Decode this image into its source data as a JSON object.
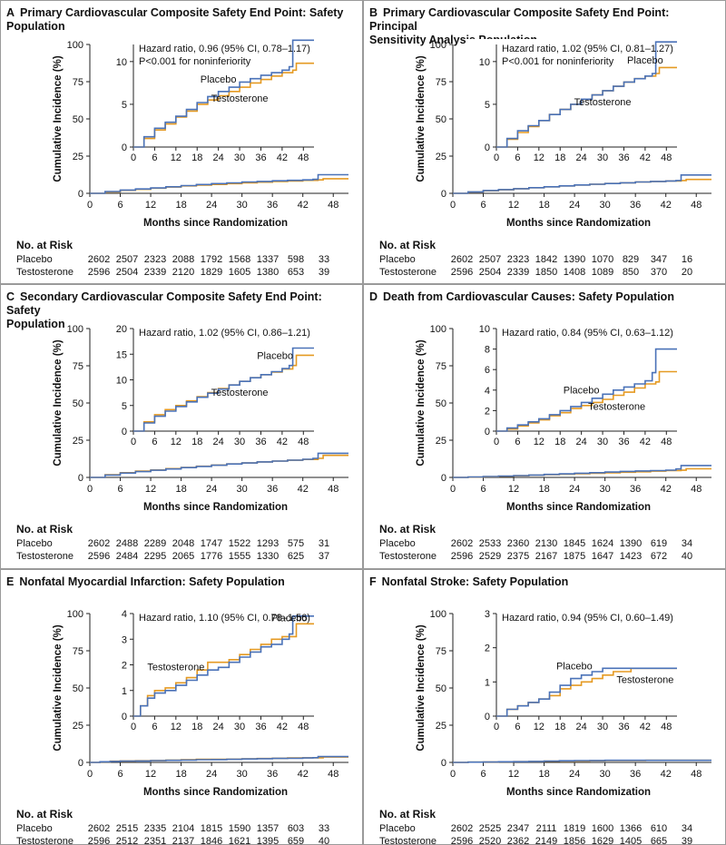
{
  "colors": {
    "placebo": "#4a72b8",
    "testosterone": "#e59a22",
    "axis": "#222222",
    "frame": "#9a9a9a"
  },
  "common": {
    "ylabel": "Cumulative Incidence (%)",
    "xlabel": "Months since Randomization",
    "main_yticks": [
      "0",
      "25",
      "50",
      "75",
      "100"
    ],
    "main_xticks": [
      "0",
      "6",
      "12",
      "18",
      "24",
      "30",
      "36",
      "42",
      "48"
    ],
    "inset_xticks": [
      "0",
      "6",
      "12",
      "18",
      "24",
      "30",
      "36",
      "42",
      "48"
    ],
    "risk_title": "No. at Risk",
    "risk_labels": [
      "Placebo",
      "Testosterone"
    ]
  },
  "chart_data": [
    {
      "type": "line",
      "letter": "A",
      "title": "Primary Cardiovascular Composite Safety End Point: Safety Population",
      "title_lines": [
        "Primary Cardiovascular Composite Safety End Point: Safety",
        "Population"
      ],
      "hr_text": "Hazard ratio, 0.96 (95% CI, 0.78–1.17)",
      "nonInf_text": "P<0.001 for noninferiority",
      "inset_ylim": [
        0,
        12
      ],
      "inset_yticks": [
        "0",
        "5",
        "10"
      ],
      "label_placebo": "Placebo",
      "label_testosterone": "Testosterone",
      "xlim": [
        0,
        51
      ],
      "ylim": [
        0,
        100
      ],
      "series": [
        {
          "name": "Placebo",
          "x": [
            0,
            3,
            6,
            9,
            12,
            15,
            18,
            21,
            24,
            27,
            30,
            33,
            36,
            39,
            42,
            44,
            45,
            47,
            51
          ],
          "y": [
            0,
            1.2,
            2.2,
            2.9,
            3.6,
            4.4,
            5.2,
            5.9,
            6.5,
            7.0,
            7.6,
            8.0,
            8.4,
            8.7,
            9.0,
            9.4,
            12.5,
            12.5,
            12.5
          ]
        },
        {
          "name": "Testosterone",
          "x": [
            0,
            3,
            6,
            9,
            12,
            15,
            18,
            21,
            24,
            27,
            30,
            33,
            36,
            39,
            42,
            45,
            46,
            47,
            51
          ],
          "y": [
            0,
            1.0,
            2.0,
            2.7,
            3.5,
            4.2,
            5.0,
            5.5,
            6.0,
            6.5,
            7.0,
            7.5,
            7.9,
            8.3,
            8.7,
            9.0,
            9.8,
            9.8,
            9.8
          ]
        }
      ],
      "risk": [
        [
          "2602",
          "2507",
          "2323",
          "2088",
          "1792",
          "1568",
          "1337",
          "598",
          "33"
        ],
        [
          "2596",
          "2504",
          "2339",
          "2120",
          "1829",
          "1605",
          "1380",
          "653",
          "39"
        ]
      ]
    },
    {
      "type": "line",
      "letter": "B",
      "title": "Primary Cardiovascular Composite Safety End Point: Principal Sensitivity Analysis Population",
      "title_lines": [
        "Primary Cardiovascular Composite Safety End Point: Principal",
        "Sensitivity Analysis Population"
      ],
      "hr_text": "Hazard ratio, 1.02 (95% CI, 0.81–1.27)",
      "nonInf_text": "P<0.001 for noninferiority",
      "inset_ylim": [
        0,
        12
      ],
      "inset_yticks": [
        "0",
        "5",
        "10"
      ],
      "label_placebo": "Placebo",
      "label_testosterone": "Testosterone",
      "xlim": [
        0,
        51
      ],
      "ylim": [
        0,
        100
      ],
      "series": [
        {
          "name": "Placebo",
          "x": [
            0,
            3,
            6,
            9,
            12,
            15,
            18,
            21,
            24,
            27,
            30,
            33,
            36,
            39,
            42,
            44,
            45,
            47,
            51
          ],
          "y": [
            0,
            1.0,
            1.9,
            2.5,
            3.1,
            3.8,
            4.4,
            5.0,
            5.6,
            6.1,
            6.6,
            7.1,
            7.6,
            8.0,
            8.3,
            8.6,
            12.3,
            12.3,
            12.3
          ]
        },
        {
          "name": "Testosterone",
          "x": [
            0,
            3,
            6,
            9,
            12,
            15,
            18,
            21,
            24,
            27,
            30,
            33,
            36,
            39,
            42,
            45,
            46,
            47,
            51
          ],
          "y": [
            0,
            0.9,
            1.7,
            2.4,
            3.1,
            3.8,
            4.4,
            5.0,
            5.6,
            6.1,
            6.6,
            7.1,
            7.6,
            8.0,
            8.3,
            8.6,
            9.3,
            9.3,
            9.3
          ]
        }
      ],
      "risk": [
        [
          "2602",
          "2507",
          "2323",
          "1842",
          "1390",
          "1070",
          "829",
          "347",
          "16"
        ],
        [
          "2596",
          "2504",
          "2339",
          "1850",
          "1408",
          "1089",
          "850",
          "370",
          "20"
        ]
      ]
    },
    {
      "type": "line",
      "letter": "C",
      "title": "Secondary Cardiovascular Composite Safety End Point: Safety Population",
      "title_lines": [
        "Secondary Cardiovascular Composite Safety End Point: Safety",
        "Population"
      ],
      "hr_text": "Hazard ratio, 1.02 (95% CI, 0.86–1.21)",
      "nonInf_text": "",
      "inset_ylim": [
        0,
        20
      ],
      "inset_yticks": [
        "0",
        "5",
        "10",
        "15",
        "20"
      ],
      "label_placebo": "Placebo",
      "label_testosterone": "Testosterone",
      "xlim": [
        0,
        51
      ],
      "ylim": [
        0,
        100
      ],
      "series": [
        {
          "name": "Placebo",
          "x": [
            0,
            3,
            6,
            9,
            12,
            15,
            18,
            21,
            24,
            27,
            30,
            33,
            36,
            39,
            42,
            44,
            45,
            47,
            51
          ],
          "y": [
            0,
            1.6,
            2.9,
            3.9,
            4.8,
            5.7,
            6.6,
            7.4,
            8.2,
            9.0,
            9.7,
            10.4,
            11.0,
            11.6,
            12.2,
            12.8,
            16.2,
            16.2,
            16.2
          ]
        },
        {
          "name": "Testosterone",
          "x": [
            0,
            3,
            6,
            9,
            12,
            15,
            18,
            21,
            24,
            27,
            30,
            33,
            36,
            39,
            42,
            45,
            46,
            47,
            51
          ],
          "y": [
            0,
            1.8,
            3.2,
            4.2,
            5.0,
            5.9,
            6.7,
            7.5,
            8.3,
            9.0,
            9.7,
            10.4,
            11.0,
            11.5,
            12.1,
            12.8,
            14.8,
            14.8,
            14.8
          ]
        }
      ],
      "risk": [
        [
          "2602",
          "2488",
          "2289",
          "2048",
          "1747",
          "1522",
          "1293",
          "575",
          "31"
        ],
        [
          "2596",
          "2484",
          "2295",
          "2065",
          "1776",
          "1555",
          "1330",
          "625",
          "37"
        ]
      ]
    },
    {
      "type": "line",
      "letter": "D",
      "title": "Death from Cardiovascular Causes: Safety Population",
      "title_lines": [
        "Death from Cardiovascular Causes: Safety Population"
      ],
      "hr_text": "Hazard ratio, 0.84 (95% CI, 0.63–1.12)",
      "nonInf_text": "",
      "inset_ylim": [
        0,
        10
      ],
      "inset_yticks": [
        "0",
        "2",
        "4",
        "6",
        "8",
        "10"
      ],
      "label_placebo": "Placebo",
      "label_testosterone": "Testosterone",
      "xlim": [
        0,
        51
      ],
      "ylim": [
        0,
        100
      ],
      "series": [
        {
          "name": "Placebo",
          "x": [
            0,
            3,
            6,
            9,
            12,
            15,
            18,
            21,
            24,
            27,
            30,
            33,
            36,
            39,
            42,
            44,
            45,
            47,
            51
          ],
          "y": [
            0,
            0.3,
            0.6,
            0.9,
            1.2,
            1.6,
            2.0,
            2.4,
            2.8,
            3.2,
            3.6,
            4.0,
            4.3,
            4.6,
            4.9,
            5.7,
            8.0,
            8.0,
            8.0
          ]
        },
        {
          "name": "Testosterone",
          "x": [
            0,
            3,
            6,
            9,
            12,
            15,
            18,
            21,
            24,
            27,
            30,
            33,
            36,
            39,
            42,
            45,
            46,
            47,
            51
          ],
          "y": [
            0,
            0.2,
            0.5,
            0.8,
            1.1,
            1.5,
            1.8,
            2.2,
            2.5,
            2.8,
            3.1,
            3.5,
            3.8,
            4.2,
            4.6,
            4.8,
            5.8,
            5.8,
            5.8
          ]
        }
      ],
      "risk": [
        [
          "2602",
          "2533",
          "2360",
          "2130",
          "1845",
          "1624",
          "1390",
          "619",
          "34"
        ],
        [
          "2596",
          "2529",
          "2375",
          "2167",
          "1875",
          "1647",
          "1423",
          "672",
          "40"
        ]
      ]
    },
    {
      "type": "line",
      "letter": "E",
      "title": "Nonfatal Myocardial Infarction: Safety Population",
      "title_lines": [
        "Nonfatal Myocardial Infarction: Safety Population"
      ],
      "hr_text": "Hazard ratio, 1.10 (95% CI, 0.78–1.56)",
      "nonInf_text": "",
      "inset_ylim": [
        0,
        4
      ],
      "inset_yticks": [
        "0",
        "1",
        "2",
        "3",
        "4"
      ],
      "label_placebo": "Placebo",
      "label_testosterone": "Testosterone",
      "xlim": [
        0,
        51
      ],
      "ylim": [
        0,
        100
      ],
      "series": [
        {
          "name": "Placebo",
          "x": [
            0,
            2,
            4,
            6,
            9,
            12,
            15,
            18,
            21,
            24,
            27,
            30,
            33,
            36,
            39,
            42,
            44,
            45,
            47,
            51
          ],
          "y": [
            0,
            0.4,
            0.7,
            0.9,
            1.0,
            1.2,
            1.4,
            1.6,
            1.8,
            1.9,
            2.1,
            2.3,
            2.5,
            2.7,
            2.8,
            3.0,
            3.2,
            3.9,
            3.9,
            3.9
          ]
        },
        {
          "name": "Testosterone",
          "x": [
            0,
            2,
            4,
            6,
            9,
            12,
            15,
            18,
            21,
            24,
            27,
            30,
            33,
            36,
            39,
            42,
            45,
            46,
            47,
            51
          ],
          "y": [
            0,
            0.4,
            0.8,
            1.0,
            1.1,
            1.3,
            1.5,
            1.8,
            2.1,
            2.1,
            2.2,
            2.4,
            2.6,
            2.8,
            3.0,
            3.1,
            3.1,
            3.6,
            3.6,
            3.6
          ]
        }
      ],
      "risk": [
        [
          "2602",
          "2515",
          "2335",
          "2104",
          "1815",
          "1590",
          "1357",
          "603",
          "33"
        ],
        [
          "2596",
          "2512",
          "2351",
          "2137",
          "1846",
          "1621",
          "1395",
          "659",
          "40"
        ]
      ]
    },
    {
      "type": "line",
      "letter": "F",
      "title": "Nonfatal Stroke: Safety Population",
      "title_lines": [
        "Nonfatal Stroke: Safety Population"
      ],
      "hr_text": "Hazard ratio, 0.94 (95% CI, 0.60–1.49)",
      "nonInf_text": "",
      "inset_ylim": [
        0,
        3
      ],
      "inset_yticks": [
        "0",
        "1",
        "2",
        "3"
      ],
      "label_placebo": "Placebo",
      "label_testosterone": "Testosterone",
      "xlim": [
        0,
        51
      ],
      "ylim": [
        0,
        100
      ],
      "series": [
        {
          "name": "Placebo",
          "x": [
            0,
            3,
            6,
            9,
            12,
            15,
            18,
            21,
            24,
            27,
            30,
            33,
            36,
            38,
            42,
            45,
            48,
            51
          ],
          "y": [
            0,
            0.2,
            0.3,
            0.4,
            0.5,
            0.7,
            0.9,
            1.1,
            1.2,
            1.3,
            1.4,
            1.4,
            1.4,
            1.4,
            1.4,
            1.4,
            1.4,
            1.4
          ]
        },
        {
          "name": "Testosterone",
          "x": [
            0,
            3,
            6,
            9,
            12,
            15,
            18,
            21,
            24,
            27,
            30,
            33,
            36,
            38,
            42,
            45,
            48,
            51
          ],
          "y": [
            0,
            0.2,
            0.3,
            0.4,
            0.5,
            0.6,
            0.8,
            0.9,
            1.0,
            1.1,
            1.2,
            1.3,
            1.3,
            1.4,
            1.4,
            1.4,
            1.4,
            1.4
          ]
        }
      ],
      "risk": [
        [
          "2602",
          "2525",
          "2347",
          "2111",
          "1819",
          "1600",
          "1366",
          "610",
          "34"
        ],
        [
          "2596",
          "2520",
          "2362",
          "2149",
          "1856",
          "1629",
          "1405",
          "665",
          "39"
        ]
      ]
    }
  ]
}
